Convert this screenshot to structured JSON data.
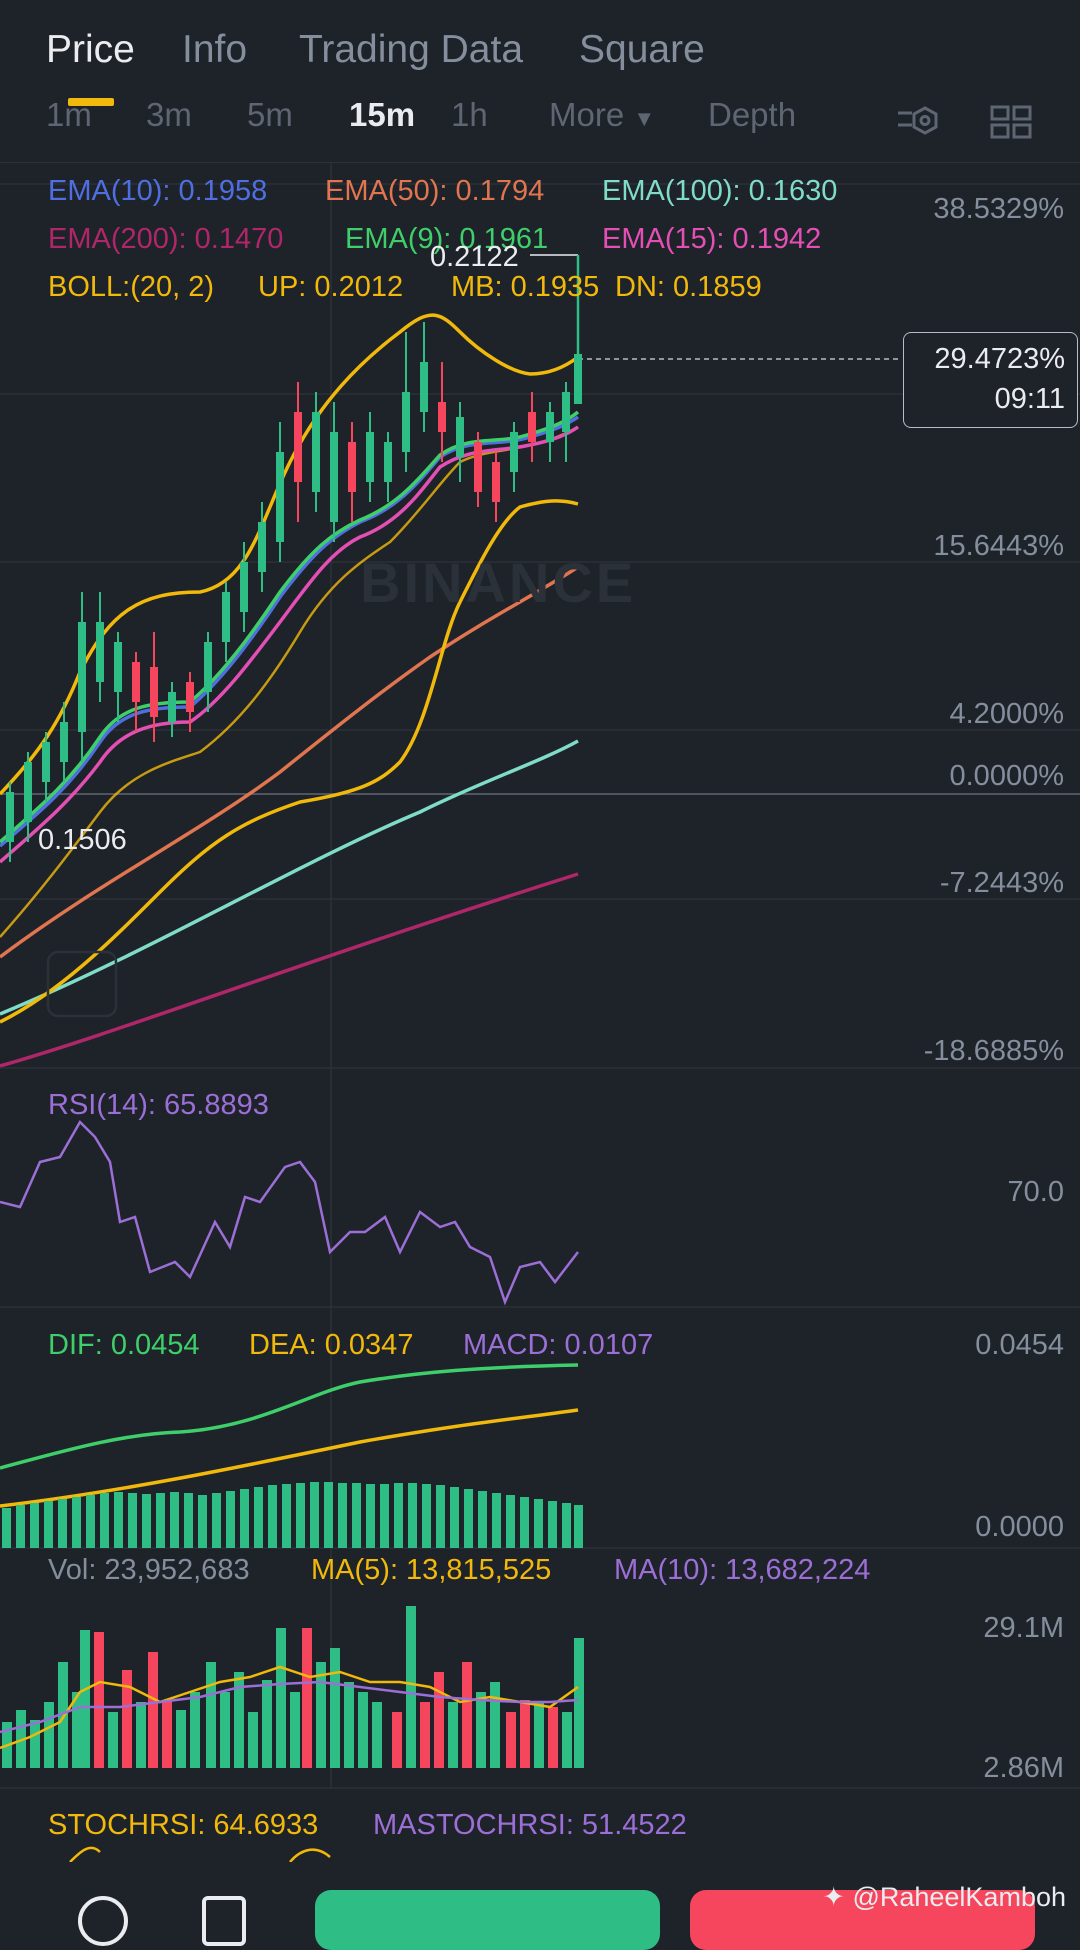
{
  "tabs": [
    {
      "label": "Price",
      "active": true
    },
    {
      "label": "Info",
      "active": false
    },
    {
      "label": "Trading Data",
      "active": false
    },
    {
      "label": "Square",
      "active": false
    }
  ],
  "intervals": [
    {
      "label": "1m",
      "active": false
    },
    {
      "label": "3m",
      "active": false
    },
    {
      "label": "5m",
      "active": false
    },
    {
      "label": "15m",
      "active": true
    },
    {
      "label": "1h",
      "active": false
    },
    {
      "label": "More",
      "active": false
    },
    {
      "label": "Depth",
      "active": false
    }
  ],
  "toolbar_icons": [
    "indicator-settings-icon",
    "layout-grid-icon"
  ],
  "ema": [
    {
      "label": "EMA(10): 0.1958",
      "color": "#4f6fe0"
    },
    {
      "label": "EMA(50): 0.1794",
      "color": "#e07550"
    },
    {
      "label": "EMA(100): 0.1630",
      "color": "#7fdcc6"
    },
    {
      "label": "EMA(200): 0.1470",
      "color": "#b0266a"
    },
    {
      "label": "EMA(9): 0.1961",
      "color": "#3ecf6a"
    },
    {
      "label": "EMA(15): 0.1942",
      "color": "#e34fb4"
    }
  ],
  "boll": {
    "label": "BOLL:(20, 2)",
    "up": "UP: 0.2012",
    "mb": "MB: 0.1935",
    "dn": "DN: 0.1859",
    "color": "#f0b90b"
  },
  "price_scale": [
    "38.5329%",
    "15.6443%",
    "4.2000%",
    "0.0000%",
    "-7.2443%",
    "-18.6885%"
  ],
  "current_price": {
    "percent": "29.4723%",
    "countdown": "09:11"
  },
  "high_label": "0.2122",
  "low_label": "0.1506",
  "brand_watermark": "BINANCE",
  "rsi": {
    "label": "RSI(14): 65.8893",
    "color": "#9b6fd6",
    "scale": "70.0"
  },
  "macd": {
    "dif": "DIF: 0.0454",
    "dea": "DEA: 0.0347",
    "macd": "MACD: 0.0107",
    "scale_top": "0.0454",
    "scale_bottom": "0.0000"
  },
  "volume": {
    "vol": "Vol: 23,952,683",
    "ma5": "MA(5): 13,815,525",
    "ma10": "MA(10): 13,682,224",
    "scale_top": "29.1M",
    "scale_bottom": "2.86M"
  },
  "stochrsi": {
    "stoch": "STOCHRSI: 64.6933",
    "ma": "MASTOCHRSI: 51.4522"
  },
  "watermark_handle": "@RaheelKamboh",
  "colors": {
    "background": "#1e2229",
    "up": "#2ebd85",
    "down": "#f6465d",
    "accent": "#f0b90b",
    "muted": "#848e9c"
  }
}
